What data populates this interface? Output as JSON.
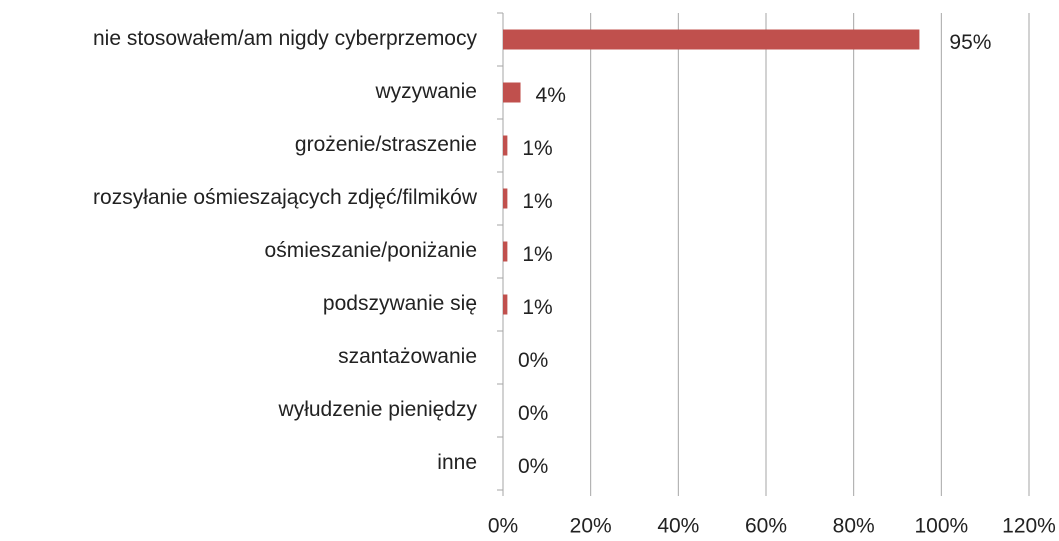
{
  "chart_data": {
    "type": "barh",
    "categories": [
      "nie stosowałem/am nigdy cyberprzemocy",
      "wyzywanie",
      "grożenie/straszenie",
      "rozsyłanie ośmieszających zdjęć/filmików",
      "ośmieszanie/poniżanie",
      "podszywanie się",
      "szantażowanie",
      "wyłudzenie pieniędzy",
      "inne"
    ],
    "values": [
      95,
      4,
      1,
      1,
      1,
      1,
      0,
      0,
      0
    ],
    "value_labels": [
      "95%",
      "4%",
      "1%",
      "1%",
      "1%",
      "1%",
      "0%",
      "0%",
      "0%"
    ],
    "color": "#c0504d",
    "xlim": [
      0,
      120
    ],
    "xticks": [
      {
        "value": 0,
        "label": "0%"
      },
      {
        "value": 20,
        "label": "20%"
      },
      {
        "value": 40,
        "label": "40%"
      },
      {
        "value": 60,
        "label": "60%"
      },
      {
        "value": 80,
        "label": "80%"
      },
      {
        "value": 100,
        "label": "100%"
      },
      {
        "value": 120,
        "label": "120%"
      }
    ],
    "grid": true
  }
}
